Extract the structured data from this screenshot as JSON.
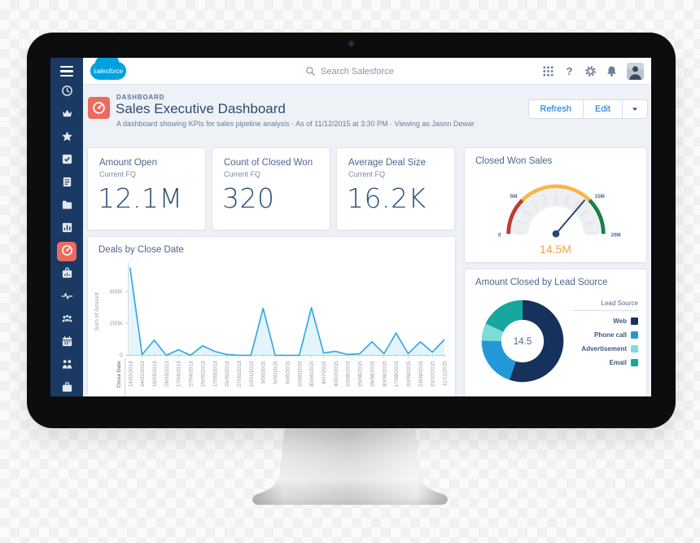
{
  "brand": {
    "accent": "#0070d2",
    "nav_background": "#1b3a63",
    "active_highlight": "#ed6a5e",
    "logo_blue": "#00a1e0"
  },
  "app": {
    "logo_text": "salesforce",
    "search": {
      "placeholder": "Search Salesforce"
    }
  },
  "sidebar": {
    "items": [
      {
        "icon": "clock-icon"
      },
      {
        "icon": "crown-icon"
      },
      {
        "icon": "star-icon"
      },
      {
        "icon": "tasks-icon"
      },
      {
        "icon": "notes-icon"
      },
      {
        "icon": "folder-icon"
      },
      {
        "icon": "chart-icon"
      },
      {
        "icon": "dashboard-icon",
        "active": true
      },
      {
        "icon": "case-icon"
      },
      {
        "icon": "activity-icon"
      },
      {
        "icon": "groups-icon"
      },
      {
        "icon": "calendar-icon"
      },
      {
        "icon": "people-icon"
      },
      {
        "icon": "briefcase-icon"
      }
    ]
  },
  "page_header": {
    "eyebrow": "DASHBOARD",
    "title": "Sales Executive Dashboard",
    "subtitle": "A dashboard showing KPIs for sales pipeline analysis · As of 11/12/2015 at 3:30 PM · Viewing as Jason Dewar",
    "actions": {
      "refresh": "Refresh",
      "edit": "Edit"
    }
  },
  "kpis": [
    {
      "title": "Amount Open",
      "subtitle": "Current FQ",
      "value": "12.1M"
    },
    {
      "title": "Count of Closed Won",
      "subtitle": "Current FQ",
      "value": "320"
    },
    {
      "title": "Average Deal Size",
      "subtitle": "Current FQ",
      "value": "16.2K"
    }
  ],
  "chart_data": [
    {
      "type": "gauge",
      "title": "Closed Won Sales",
      "min": 0,
      "max": 20,
      "unit": "millions",
      "ticks": [
        {
          "value": 0,
          "label": "0"
        },
        {
          "value": 5,
          "label": "5M"
        },
        {
          "value": 15,
          "label": "15M"
        },
        {
          "value": 20,
          "label": "20M"
        }
      ],
      "minor_tick_step": 2,
      "bands": [
        {
          "from": 0,
          "to": 5,
          "color": "#c23934"
        },
        {
          "from": 5,
          "to": 15,
          "color": "#f9b54d"
        },
        {
          "from": 15,
          "to": 20,
          "color": "#1a8244"
        }
      ],
      "value": 14.5,
      "value_label": "14.5M",
      "value_color": "#f2a33c",
      "needle_color": "#24456e"
    },
    {
      "type": "area",
      "title": "Deals by Close Date",
      "xlabel": "Close Date",
      "ylabel": "Sum of Amount",
      "line_color": "#2aa7e0",
      "fill_color": "rgba(42,167,224,0.13)",
      "ylim": [
        0,
        560000
      ],
      "yticks": [
        {
          "value": 0,
          "label": "0"
        },
        {
          "value": 200000,
          "label": "200K"
        },
        {
          "value": 400000,
          "label": "400K"
        }
      ],
      "categories": [
        "14/02/2013",
        "24/02/2013",
        "19/03/2013",
        "29/03/2013",
        "17/04/2013",
        "27/04/2013",
        "15/05/2013",
        "17/05/2013",
        "25/05/2013",
        "27/05/2013",
        "10/01/2015",
        "3/06/2015",
        "5/06/2015",
        "6/06/2015",
        "20/06/2015",
        "30/06/2015",
        "8/07/2015",
        "30/07/2015",
        "20/08/2015",
        "25/08/2015",
        "29/08/2015",
        "30/08/2015",
        "17/09/2015",
        "20/09/2015",
        "23/09/2015",
        "20/10/2015",
        "11/11/2015"
      ],
      "values": [
        550000,
        5000,
        95000,
        0,
        35000,
        0,
        60000,
        25000,
        5000,
        0,
        0,
        295000,
        0,
        0,
        0,
        300000,
        15000,
        25000,
        5000,
        10000,
        85000,
        10000,
        140000,
        10000,
        85000,
        20000,
        100000
      ]
    },
    {
      "type": "donut",
      "title": "Amount Closed by Lead Source",
      "center_label": "14.5",
      "legend_title": "Lead Source",
      "slices": [
        {
          "label": "Web",
          "value": 8.0,
          "color": "#16325c"
        },
        {
          "label": "Phone call",
          "value": 2.9,
          "color": "#2398d8"
        },
        {
          "label": "Advertisement",
          "value": 1.0,
          "color": "#7fdbd9"
        },
        {
          "label": "Email",
          "value": 2.6,
          "color": "#18a79d"
        }
      ]
    }
  ]
}
